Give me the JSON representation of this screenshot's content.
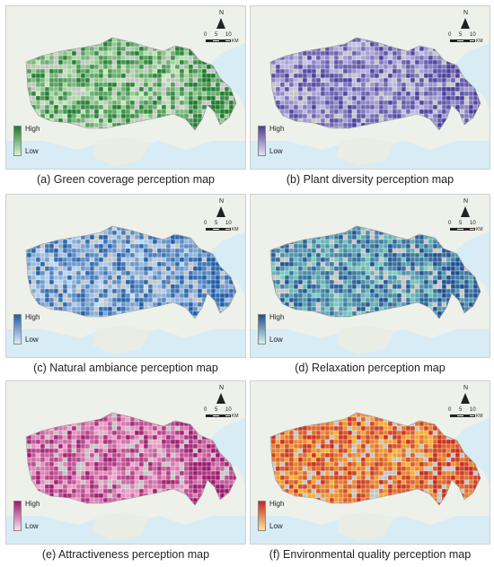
{
  "panels": [
    {
      "caption": "(a) Green coverage perception map",
      "high": "High",
      "low": "Low",
      "dark": "#1e7a2e",
      "light": "#c9ebc0",
      "bar_top": "#1e7a2e",
      "bar_bottom": "#d9f2d0"
    },
    {
      "caption": "(b) Plant diversity perception map",
      "high": "High",
      "low": "Low",
      "dark": "#4a3d9a",
      "light": "#c7c2e6",
      "bar_top": "#4a3d9a",
      "bar_bottom": "#e4e1f3"
    },
    {
      "caption": "(c) Natural ambiance perception map",
      "high": "High",
      "low": "Low",
      "dark": "#1f5da8",
      "light": "#c6dcf0",
      "bar_top": "#1f5da8",
      "bar_bottom": "#e0ecf8"
    },
    {
      "caption": "(d) Relaxation perception map",
      "high": "High",
      "low": "Low",
      "dark": "#1f4f93",
      "light": "#7fd0c0",
      "bar_top": "#1f4f93",
      "bar_bottom": "#d8f1ea"
    },
    {
      "caption": "(e) Attractiveness perception map",
      "high": "High",
      "low": "Low",
      "dark": "#9c1a6e",
      "light": "#f3a9cf",
      "bar_top": "#9c1a6e",
      "bar_bottom": "#fbe0ee"
    },
    {
      "caption": "(f) Environmental quality perception map",
      "high": "High",
      "low": "Low",
      "dark": "#c92a1e",
      "light": "#f7b53b",
      "bar_top": "#c92a1e",
      "bar_bottom": "#fbe39a"
    }
  ],
  "map_furniture": {
    "north_label": "N",
    "scale_ticks": [
      "0",
      "5",
      "10"
    ],
    "scale_unit": "KM"
  }
}
